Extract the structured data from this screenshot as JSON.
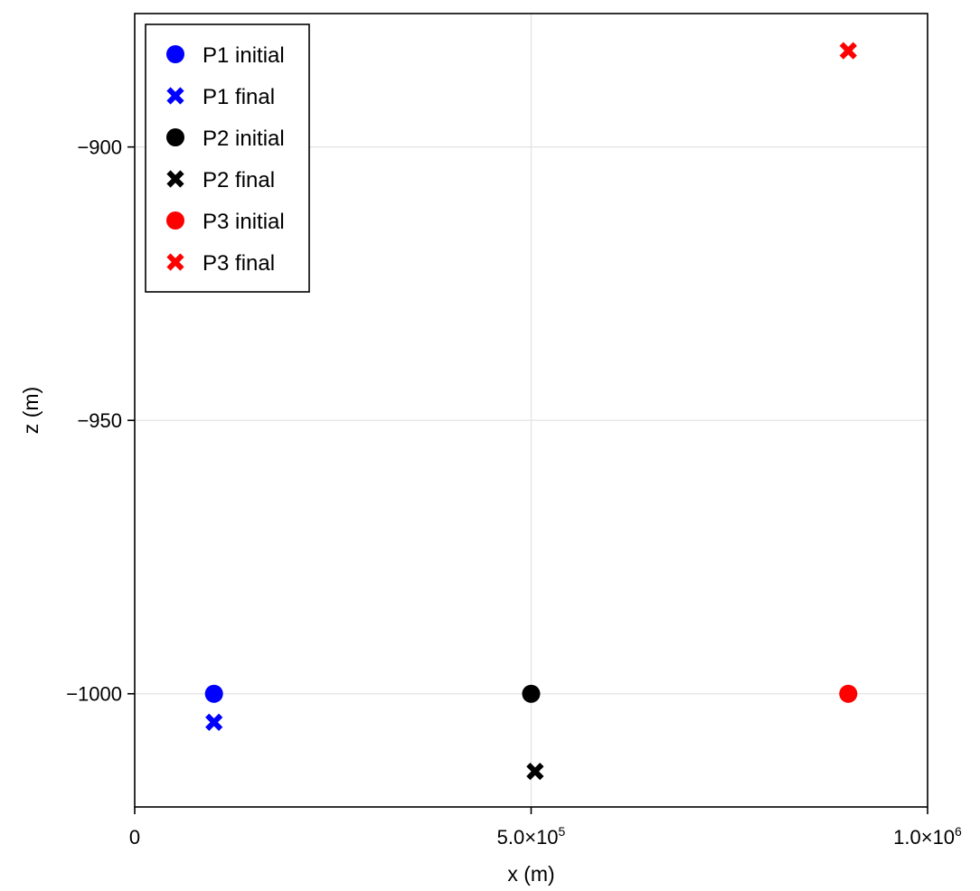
{
  "chart_data": {
    "type": "scatter",
    "xlabel": "x (m)",
    "ylabel": "z (m)",
    "xlim": [
      0,
      1000000
    ],
    "ylim": [
      -1020.7,
      -875.6
    ],
    "grid": true,
    "legend_position": "top-left",
    "x_ticks": [
      {
        "value": 0,
        "mantissa": "0",
        "exponent": ""
      },
      {
        "value": 500000,
        "mantissa": "5.0×10",
        "exponent": "5"
      },
      {
        "value": 1000000,
        "mantissa": "1.0×10",
        "exponent": "6"
      }
    ],
    "y_ticks": [
      {
        "value": -900,
        "label": "−900"
      },
      {
        "value": -950,
        "label": "−950"
      },
      {
        "value": -1000,
        "label": "−1000"
      }
    ],
    "series": [
      {
        "name": "P1 initial",
        "marker": "circle",
        "color": "#0000ff",
        "points": [
          {
            "x": 100000,
            "y": -1000
          }
        ]
      },
      {
        "name": "P1 final",
        "marker": "cross",
        "color": "#0000ff",
        "points": [
          {
            "x": 100000,
            "y": -1005.2
          }
        ]
      },
      {
        "name": "P2 initial",
        "marker": "circle",
        "color": "#000000",
        "points": [
          {
            "x": 500000,
            "y": -1000
          }
        ]
      },
      {
        "name": "P2 final",
        "marker": "cross",
        "color": "#000000",
        "points": [
          {
            "x": 505000,
            "y": -1014.2
          }
        ]
      },
      {
        "name": "P3 initial",
        "marker": "circle",
        "color": "#ff0000",
        "points": [
          {
            "x": 900000,
            "y": -1000
          }
        ]
      },
      {
        "name": "P3 final",
        "marker": "cross",
        "color": "#ff0000",
        "points": [
          {
            "x": 900000,
            "y": -882.4
          }
        ]
      }
    ]
  }
}
